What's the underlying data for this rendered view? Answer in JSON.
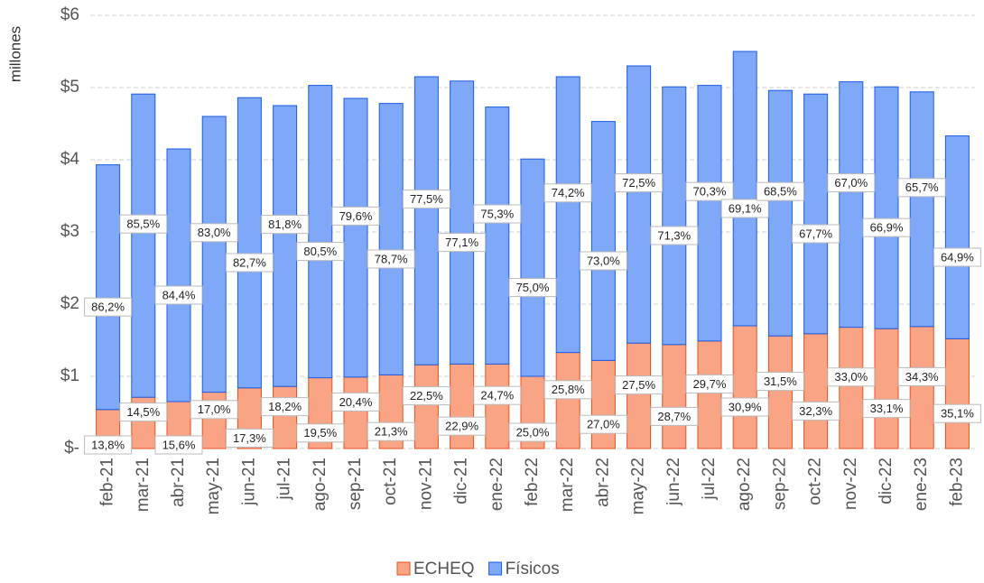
{
  "chart_data": {
    "type": "stacked_bar",
    "y_axis_label": "millones",
    "categories": [
      "feb-21",
      "mar-21",
      "abr-21",
      "may-21",
      "jun-21",
      "jul-21",
      "ago-21",
      "sep-21",
      "oct-21",
      "nov-21",
      "dic-21",
      "ene-22",
      "feb-22",
      "mar-22",
      "abr-22",
      "may-22",
      "jun-22",
      "jul-22",
      "ago-22",
      "sep-22",
      "oct-22",
      "nov-22",
      "dic-22",
      "ene-23",
      "feb-23"
    ],
    "series": [
      {
        "name": "ECHEQ",
        "color": "#f9a585",
        "edge": "#e8501e",
        "values": [
          0.54,
          0.71,
          0.65,
          0.78,
          0.84,
          0.86,
          0.98,
          0.99,
          1.02,
          1.16,
          1.17,
          1.17,
          1.0,
          1.33,
          1.22,
          1.46,
          1.44,
          1.49,
          1.7,
          1.56,
          1.59,
          1.68,
          1.66,
          1.69,
          1.52
        ],
        "percent": [
          13.8,
          14.5,
          15.6,
          17.0,
          17.3,
          18.2,
          19.5,
          20.4,
          21.3,
          22.5,
          22.9,
          24.7,
          25.0,
          25.8,
          27.0,
          27.5,
          28.7,
          29.7,
          30.9,
          31.5,
          32.3,
          33.0,
          33.1,
          34.3,
          35.1
        ],
        "percent_labels": [
          "13,8%",
          "14,5%",
          "15,6%",
          "17,0%",
          "17,3%",
          "18,2%",
          "19,5%",
          "20,4%",
          "21,3%",
          "22,5%",
          "22,9%",
          "24,7%",
          "25,0%",
          "25,8%",
          "27,0%",
          "27,5%",
          "28,7%",
          "29,7%",
          "30,9%",
          "31,5%",
          "32,3%",
          "33,0%",
          "33,1%",
          "34,3%",
          "35,1%"
        ]
      },
      {
        "name": "Físicos",
        "color": "#7fa9f8",
        "edge": "#1a5ce6",
        "values": [
          3.39,
          4.2,
          3.5,
          3.82,
          4.02,
          3.89,
          4.05,
          3.86,
          3.76,
          3.99,
          3.92,
          3.56,
          3.01,
          3.82,
          3.31,
          3.84,
          3.57,
          3.54,
          3.8,
          3.4,
          3.32,
          3.4,
          3.35,
          3.25,
          2.81
        ],
        "percent": [
          86.2,
          85.5,
          84.4,
          83.0,
          82.7,
          81.8,
          80.5,
          79.6,
          78.7,
          77.5,
          77.1,
          75.3,
          75.0,
          74.2,
          73.0,
          72.5,
          71.3,
          70.3,
          69.1,
          68.5,
          67.7,
          67.0,
          66.9,
          65.7,
          64.9
        ],
        "percent_labels": [
          "86,2%",
          "85,5%",
          "84,4%",
          "83,0%",
          "82,7%",
          "81,8%",
          "80,5%",
          "79,6%",
          "78,7%",
          "77,5%",
          "77,1%",
          "75,3%",
          "75,0%",
          "74,2%",
          "73,0%",
          "72,5%",
          "71,3%",
          "70,3%",
          "69,1%",
          "68,5%",
          "67,7%",
          "67,0%",
          "66,9%",
          "65,7%",
          "64,9%"
        ]
      }
    ],
    "ylim": [
      0,
      6
    ],
    "yticks": [
      {
        "value": 0,
        "label": "$-"
      },
      {
        "value": 1,
        "label": "$1"
      },
      {
        "value": 2,
        "label": "$2"
      },
      {
        "value": 3,
        "label": "$3"
      },
      {
        "value": 4,
        "label": "$4"
      },
      {
        "value": 5,
        "label": "$5"
      },
      {
        "value": 6,
        "label": "$6"
      }
    ],
    "grid": true,
    "legend": "bottom"
  }
}
